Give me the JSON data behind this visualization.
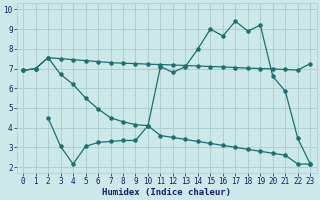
{
  "xlabel": "Humidex (Indice chaleur)",
  "bg_color": "#cce8e8",
  "line_color": "#1a7070",
  "grid_color": "#aacccc",
  "x_ticks": [
    0,
    1,
    2,
    3,
    4,
    5,
    6,
    7,
    8,
    9,
    10,
    11,
    12,
    13,
    14,
    15,
    16,
    17,
    18,
    19,
    20,
    21,
    22,
    23
  ],
  "y_ticks": [
    2,
    3,
    4,
    5,
    6,
    7,
    8,
    9,
    10
  ],
  "ylim": [
    1.7,
    10.3
  ],
  "xlim": [
    -0.5,
    23.5
  ],
  "line1_x": [
    0,
    1,
    2,
    3,
    4,
    5,
    6,
    7,
    8,
    9,
    10,
    11,
    12,
    13,
    14,
    15,
    16,
    17,
    18,
    19,
    20,
    21,
    22,
    23
  ],
  "line1_y": [
    6.9,
    7.0,
    7.55,
    7.5,
    7.45,
    7.4,
    7.35,
    7.3,
    7.27,
    7.25,
    7.22,
    7.2,
    7.18,
    7.15,
    7.13,
    7.1,
    7.08,
    7.05,
    7.02,
    7.0,
    6.98,
    6.95,
    6.92,
    7.25
  ],
  "line2_x": [
    0,
    1,
    2,
    3,
    4,
    5,
    6,
    7,
    8,
    9,
    10,
    11,
    12,
    13,
    14,
    15,
    16,
    17,
    18,
    19,
    20,
    21,
    22,
    23
  ],
  "line2_y": [
    6.9,
    7.0,
    7.55,
    6.7,
    6.2,
    5.5,
    4.95,
    4.5,
    4.3,
    4.15,
    4.1,
    7.1,
    6.8,
    7.1,
    8.0,
    9.0,
    8.65,
    9.4,
    8.9,
    9.2,
    6.6,
    5.85,
    3.45,
    2.15
  ],
  "line3_x": [
    2,
    3,
    4,
    5,
    6,
    7,
    8,
    9,
    10,
    11,
    12,
    13,
    14,
    15,
    16,
    17,
    18,
    19,
    20,
    21,
    22,
    23
  ],
  "line3_y": [
    4.5,
    3.05,
    2.15,
    3.05,
    3.25,
    3.3,
    3.35,
    3.35,
    4.1,
    3.6,
    3.5,
    3.4,
    3.3,
    3.2,
    3.1,
    3.0,
    2.9,
    2.8,
    2.7,
    2.6,
    2.15,
    2.15
  ]
}
